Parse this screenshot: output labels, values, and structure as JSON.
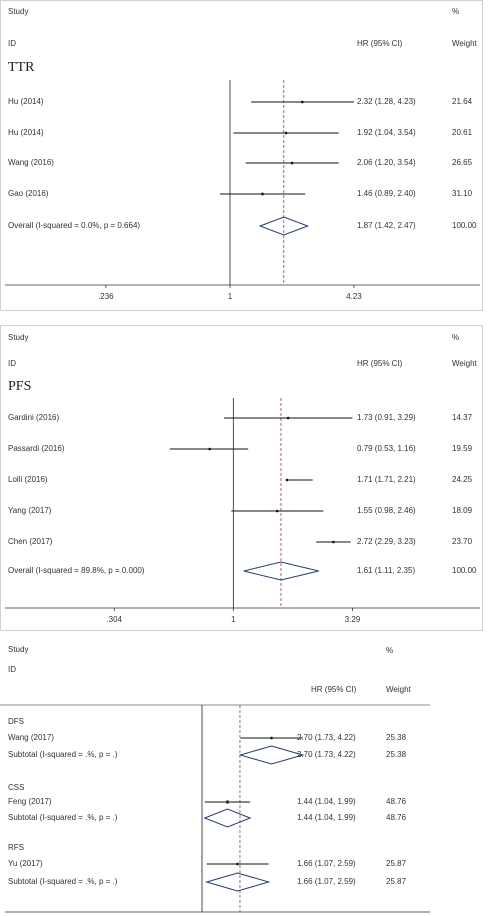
{
  "chart_data": [
    {
      "type": "forest",
      "header": {
        "study": "Study",
        "percent": "%",
        "id": "ID",
        "effect": "HR (95% CI)",
        "weight": "Weight"
      },
      "xlim": [
        0.073,
        12.2
      ],
      "log_scale": true,
      "xticks": [
        {
          "value": 0.236,
          "label": ".236"
        },
        1,
        4.23
      ],
      "groups": [
        {
          "name": "TTR",
          "studies": [
            "Hu (2014)",
            "Hu (2014)",
            "Wang (2016)",
            "Gao (2016)"
          ],
          "values": [
            2.32,
            1.92,
            2.06,
            1.46
          ],
          "lower": [
            1.28,
            1.04,
            1.2,
            0.89
          ],
          "upper": [
            4.23,
            3.54,
            3.54,
            2.4
          ],
          "value_labels": [
            "2.32 (1.28, 4.23)",
            "1.92 (1.04, 3.54)",
            "2.06 (1.20, 3.54)",
            "1.46 (0.89, 2.40)"
          ],
          "weights": [
            21.64,
            20.61,
            26.65,
            31.1
          ],
          "weight_labels": [
            "21.64",
            "20.61",
            "26.65",
            "31.10"
          ],
          "subtotal": {
            "label": "Overall  (I-squared = 0.0%, p = 0.664)",
            "value": 1.87,
            "lower": 1.42,
            "upper": 2.47,
            "value_label": "1.87 (1.42, 2.47)",
            "weight": 100,
            "weight_label": "100.00"
          }
        }
      ]
    },
    {
      "type": "forest",
      "header": {
        "study": "Study",
        "percent": "%",
        "id": "ID",
        "effect": "HR (95% CI)",
        "weight": "Weight"
      },
      "xlim": [
        0.102,
        8.3
      ],
      "log_scale": true,
      "xticks": [
        {
          "value": 0.304,
          "label": ".304"
        },
        1,
        3.29
      ],
      "groups": [
        {
          "name": "PFS",
          "studies": [
            "Gardini (2016)",
            "Passardi (2016)",
            "Lolli (2016)",
            "Yang (2017)",
            "Chen (2017)"
          ],
          "values": [
            1.73,
            0.79,
            1.71,
            1.55,
            2.72
          ],
          "lower": [
            0.91,
            0.53,
            1.71,
            0.98,
            2.29
          ],
          "upper": [
            3.29,
            1.16,
            2.21,
            2.46,
            3.23
          ],
          "value_labels": [
            "1.73 (0.91, 3.29)",
            "0.79 (0.53, 1.16)",
            "1.71 (1.71, 2.21)",
            "1.55 (0.98, 2.46)",
            "2.72 (2.29, 3.23)"
          ],
          "weights": [
            14.37,
            19.59,
            24.25,
            18.09,
            23.7
          ],
          "weight_labels": [
            "14.37",
            "19.59",
            "24.25",
            "18.09",
            "23.70"
          ],
          "subtotal": {
            "label": "Overall  (I-squared = 89.8%, p = 0.000)",
            "value": 1.61,
            "lower": 1.11,
            "upper": 2.35,
            "value_label": "1.61 (1.11, 2.35)",
            "weight": 100,
            "weight_label": "100.00"
          }
        }
      ]
    },
    {
      "type": "forest",
      "header": {
        "study": "Study",
        "percent": "%",
        "id": "ID",
        "effect": "HR (95% CI)",
        "weight": "Weight"
      },
      "xlim": [
        0.06,
        22.5
      ],
      "log_scale": true,
      "reference_line": 1.72,
      "groups": [
        {
          "name": "DFS",
          "studies": [
            "Wang (2017)"
          ],
          "values": [
            2.7
          ],
          "lower": [
            1.73
          ],
          "upper": [
            4.22
          ],
          "value_labels": [
            "2.70 (1.73, 4.22)"
          ],
          "weights": [
            25.38
          ],
          "weight_labels": [
            "25.38"
          ],
          "subtotal": {
            "label": "Subtotal  (I-squared = .%, p = .)",
            "value": 2.7,
            "lower": 1.73,
            "upper": 4.22,
            "value_label": "2.70 (1.73, 4.22)",
            "weight": 25.38,
            "weight_label": "25.38"
          }
        },
        {
          "name": "CSS",
          "studies": [
            "Feng (2017)"
          ],
          "values": [
            1.44
          ],
          "lower": [
            1.04
          ],
          "upper": [
            1.99
          ],
          "value_labels": [
            "1.44 (1.04, 1.99)"
          ],
          "weights": [
            48.76
          ],
          "weight_labels": [
            "48.76"
          ],
          "subtotal": {
            "label": "Subtotal  (I-squared = .%, p = .)",
            "value": 1.44,
            "lower": 1.04,
            "upper": 1.99,
            "value_label": "1.44 (1.04, 1.99)",
            "weight": 48.76,
            "weight_label": "48.76"
          }
        },
        {
          "name": "RFS",
          "studies": [
            "Yu (2017)"
          ],
          "values": [
            1.66
          ],
          "lower": [
            1.07
          ],
          "upper": [
            2.59
          ],
          "value_labels": [
            "1.66 (1.07, 2.59)"
          ],
          "weights": [
            25.87
          ],
          "weight_labels": [
            "25.87"
          ],
          "subtotal": {
            "label": "Subtotal  (I-squared = .%, p = .)",
            "value": 1.66,
            "lower": 1.07,
            "upper": 2.59,
            "value_label": "1.66 (1.07, 2.59)",
            "weight": 25.87,
            "weight_label": "25.87"
          }
        }
      ]
    }
  ]
}
